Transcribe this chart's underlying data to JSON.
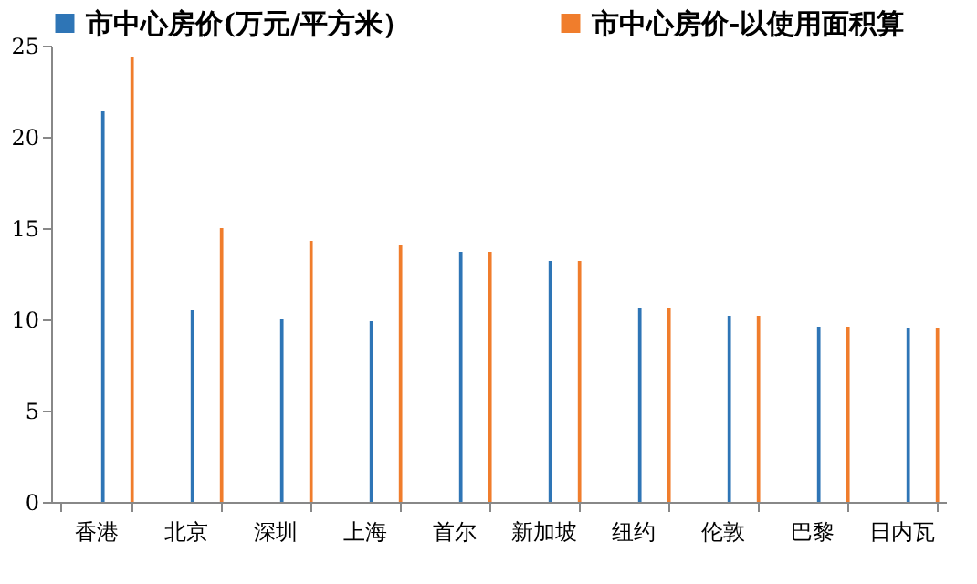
{
  "chart_data": {
    "type": "bar",
    "categories": [
      "香港",
      "北京",
      "深圳",
      "上海",
      "首尔",
      "新加坡",
      "纽约",
      "伦敦",
      "巴黎",
      "日内瓦"
    ],
    "series": [
      {
        "name": "市中心房价(万元/平方米）",
        "color": "#2e75b6",
        "values": [
          21.4,
          10.5,
          10.0,
          9.9,
          13.7,
          13.2,
          10.6,
          10.2,
          9.6,
          9.5
        ]
      },
      {
        "name": "市中心房价-以使用面积算",
        "color": "#f07d2c",
        "values": [
          24.4,
          15.0,
          14.3,
          14.1,
          13.7,
          13.2,
          10.6,
          10.2,
          9.6,
          9.5
        ]
      }
    ],
    "ylim": [
      0,
      25
    ],
    "yticks": [
      0,
      5,
      10,
      15,
      20,
      25
    ],
    "grid": false,
    "legend": "top"
  }
}
